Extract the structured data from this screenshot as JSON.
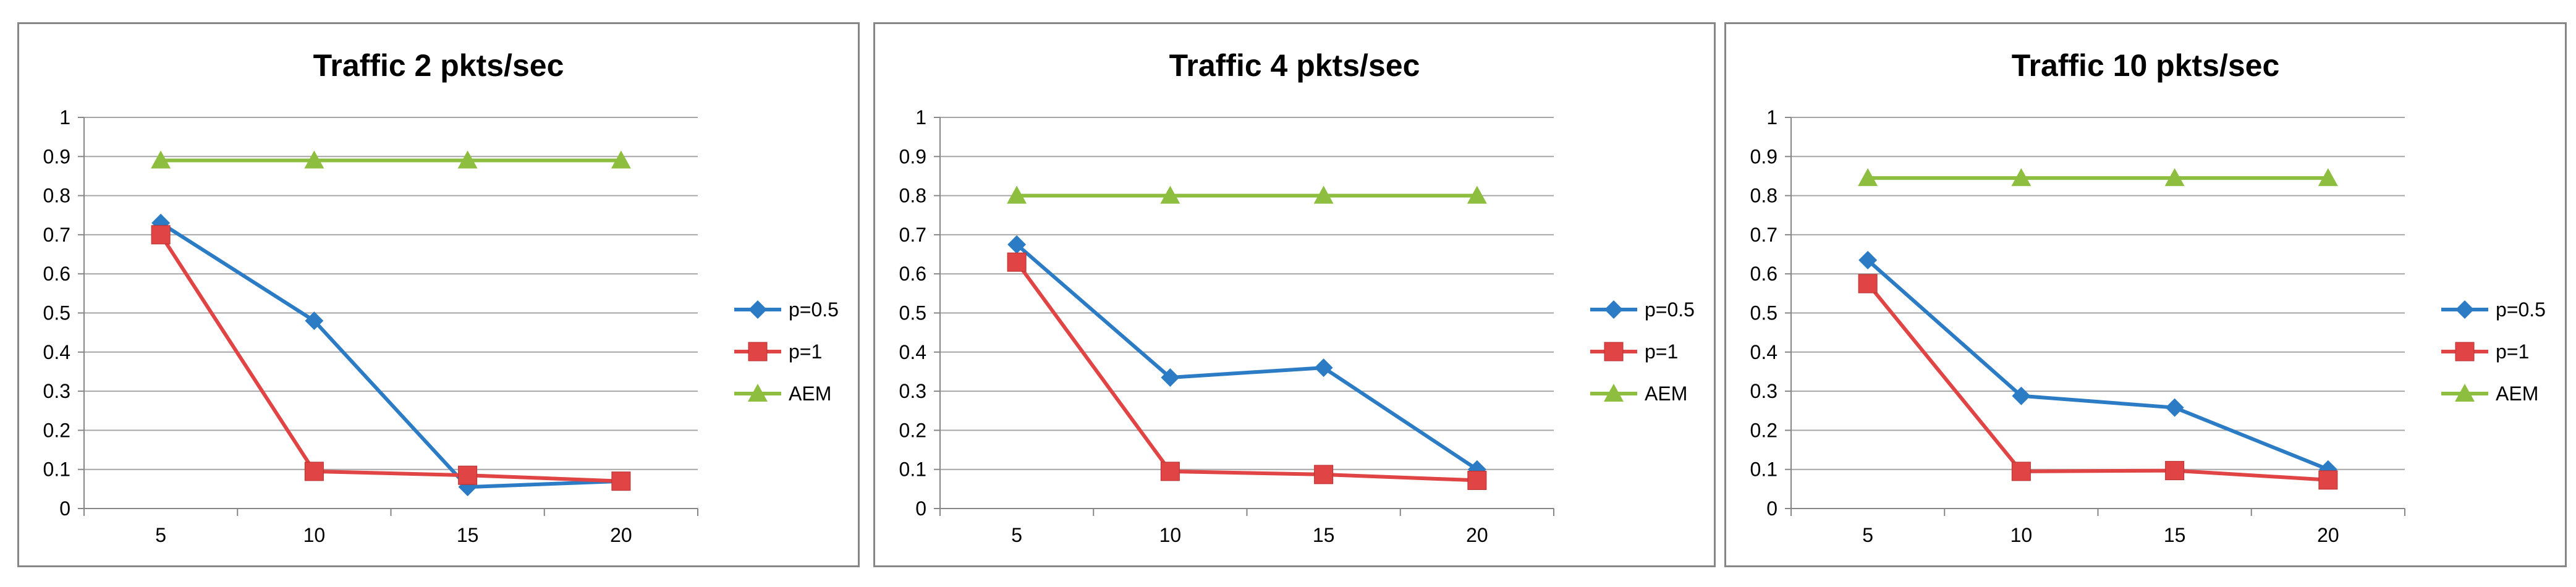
{
  "colors": {
    "p05": "#2B7CC4",
    "p1": "#E04444",
    "aem": "#8DBE3F",
    "grid": "#A6A6A6",
    "axis": "#868686"
  },
  "chart_data": [
    {
      "type": "line",
      "title": "Traffic 2 pkts/sec",
      "categories": [
        "5",
        "10",
        "15",
        "20"
      ],
      "ylim": [
        0,
        1
      ],
      "yticks": [
        "0",
        "0.1",
        "0.2",
        "0.3",
        "0.4",
        "0.5",
        "0.6",
        "0.7",
        "0.8",
        "0.9",
        "1"
      ],
      "grid": true,
      "legend": "right",
      "series": [
        {
          "name": "p=0.5",
          "marker": "diamond",
          "color": "#2B7CC4",
          "values": [
            0.73,
            0.48,
            0.055,
            0.07
          ]
        },
        {
          "name": "p=1",
          "marker": "square",
          "color": "#E04444",
          "values": [
            0.7,
            0.095,
            0.085,
            0.07
          ]
        },
        {
          "name": "AEM",
          "marker": "triangle",
          "color": "#8DBE3F",
          "values": [
            0.89,
            0.89,
            0.89,
            0.89
          ]
        }
      ]
    },
    {
      "type": "line",
      "title": "Traffic 4 pkts/sec",
      "categories": [
        "5",
        "10",
        "15",
        "20"
      ],
      "ylim": [
        0,
        1
      ],
      "yticks": [
        "0",
        "0.1",
        "0.2",
        "0.3",
        "0.4",
        "0.5",
        "0.6",
        "0.7",
        "0.8",
        "0.9",
        "1"
      ],
      "grid": true,
      "legend": "right",
      "series": [
        {
          "name": "p=0.5",
          "marker": "diamond",
          "color": "#2B7CC4",
          "values": [
            0.675,
            0.335,
            0.36,
            0.1
          ]
        },
        {
          "name": "p=1",
          "marker": "square",
          "color": "#E04444",
          "values": [
            0.63,
            0.095,
            0.087,
            0.072
          ]
        },
        {
          "name": "AEM",
          "marker": "triangle",
          "color": "#8DBE3F",
          "values": [
            0.8,
            0.8,
            0.8,
            0.8
          ]
        }
      ]
    },
    {
      "type": "line",
      "title": "Traffic 10 pkts/sec",
      "categories": [
        "5",
        "10",
        "15",
        "20"
      ],
      "ylim": [
        0,
        1
      ],
      "yticks": [
        "0",
        "0.1",
        "0.2",
        "0.3",
        "0.4",
        "0.5",
        "0.6",
        "0.7",
        "0.8",
        "0.9",
        "1"
      ],
      "grid": true,
      "legend": "right",
      "series": [
        {
          "name": "p=0.5",
          "marker": "diamond",
          "color": "#2B7CC4",
          "values": [
            0.635,
            0.288,
            0.258,
            0.1
          ]
        },
        {
          "name": "p=1",
          "marker": "square",
          "color": "#E04444",
          "values": [
            0.575,
            0.095,
            0.097,
            0.073
          ]
        },
        {
          "name": "AEM",
          "marker": "triangle",
          "color": "#8DBE3F",
          "values": [
            0.845,
            0.845,
            0.845,
            0.845
          ]
        }
      ]
    }
  ]
}
